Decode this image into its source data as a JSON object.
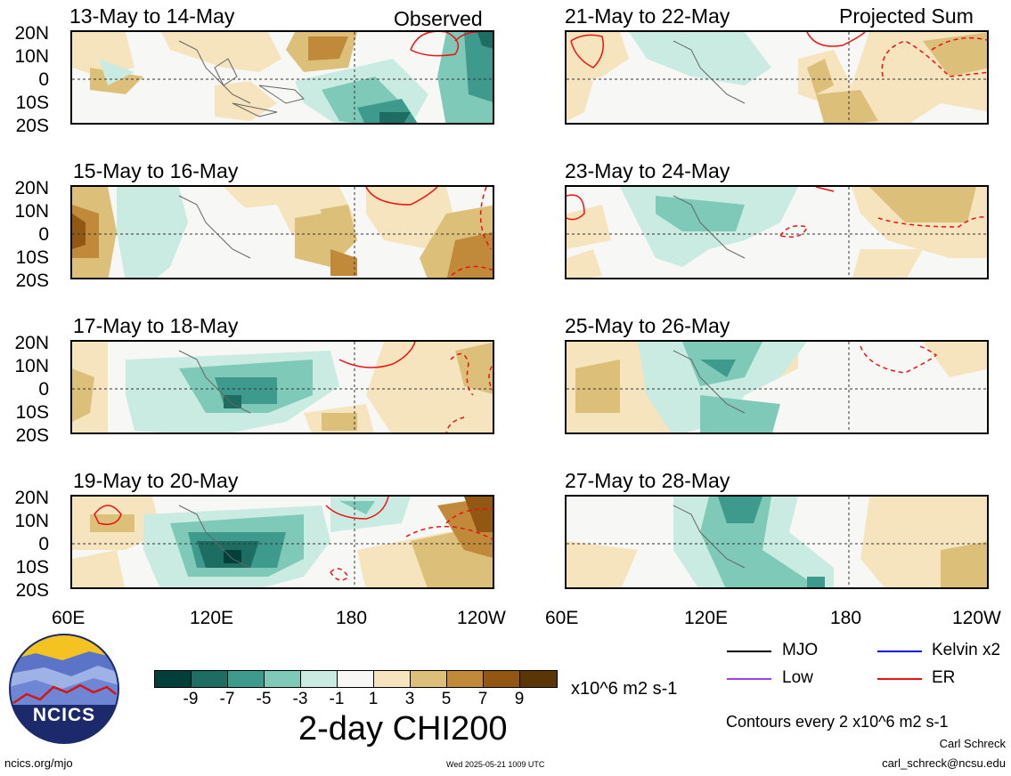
{
  "panel_tags": {
    "observed": "Observed",
    "projected": "Projected Sum"
  },
  "panels": {
    "left": [
      "13-May to 14-May",
      "15-May to 16-May",
      "17-May to 18-May",
      "19-May to 20-May"
    ],
    "right": [
      "21-May to 22-May",
      "23-May to 24-May",
      "25-May to 26-May",
      "27-May to 28-May"
    ]
  },
  "lat_labels": [
    "20N",
    "10N",
    "0",
    "10S",
    "20S"
  ],
  "lon_labels": [
    "60E",
    "120E",
    "180",
    "120W"
  ],
  "legend": {
    "mjo": "MJO",
    "kelvin": "Kelvin x2",
    "low": "Low",
    "er": "ER",
    "colors": {
      "mjo": "#000000",
      "kelvin": "#0000ee",
      "low": "#a040e0",
      "er": "#ee1111"
    }
  },
  "colorbar": {
    "ticks": [
      "-9",
      "-7",
      "-5",
      "-3",
      "-1",
      "1",
      "3",
      "5",
      "7",
      "9"
    ],
    "colors": [
      "#01403a",
      "#1e6d62",
      "#3d9a8c",
      "#7fc9b9",
      "#c9ebe1",
      "#f7f7f5",
      "#f5e4bd",
      "#dcc07a",
      "#c08a3a",
      "#925813",
      "#5a3506"
    ],
    "units": "x10^6 m2 s-1"
  },
  "title": "2-day CHI200",
  "contour_note": "Contours every 2 x10^6 m2 s-1",
  "author": "Carl Schreck",
  "email": "carl_schreck@ncsu.edu",
  "site": "ncics.org/mjo",
  "timestamp": "Wed 2025-05-21 1009 UTC",
  "logo_text": "NCICS"
}
